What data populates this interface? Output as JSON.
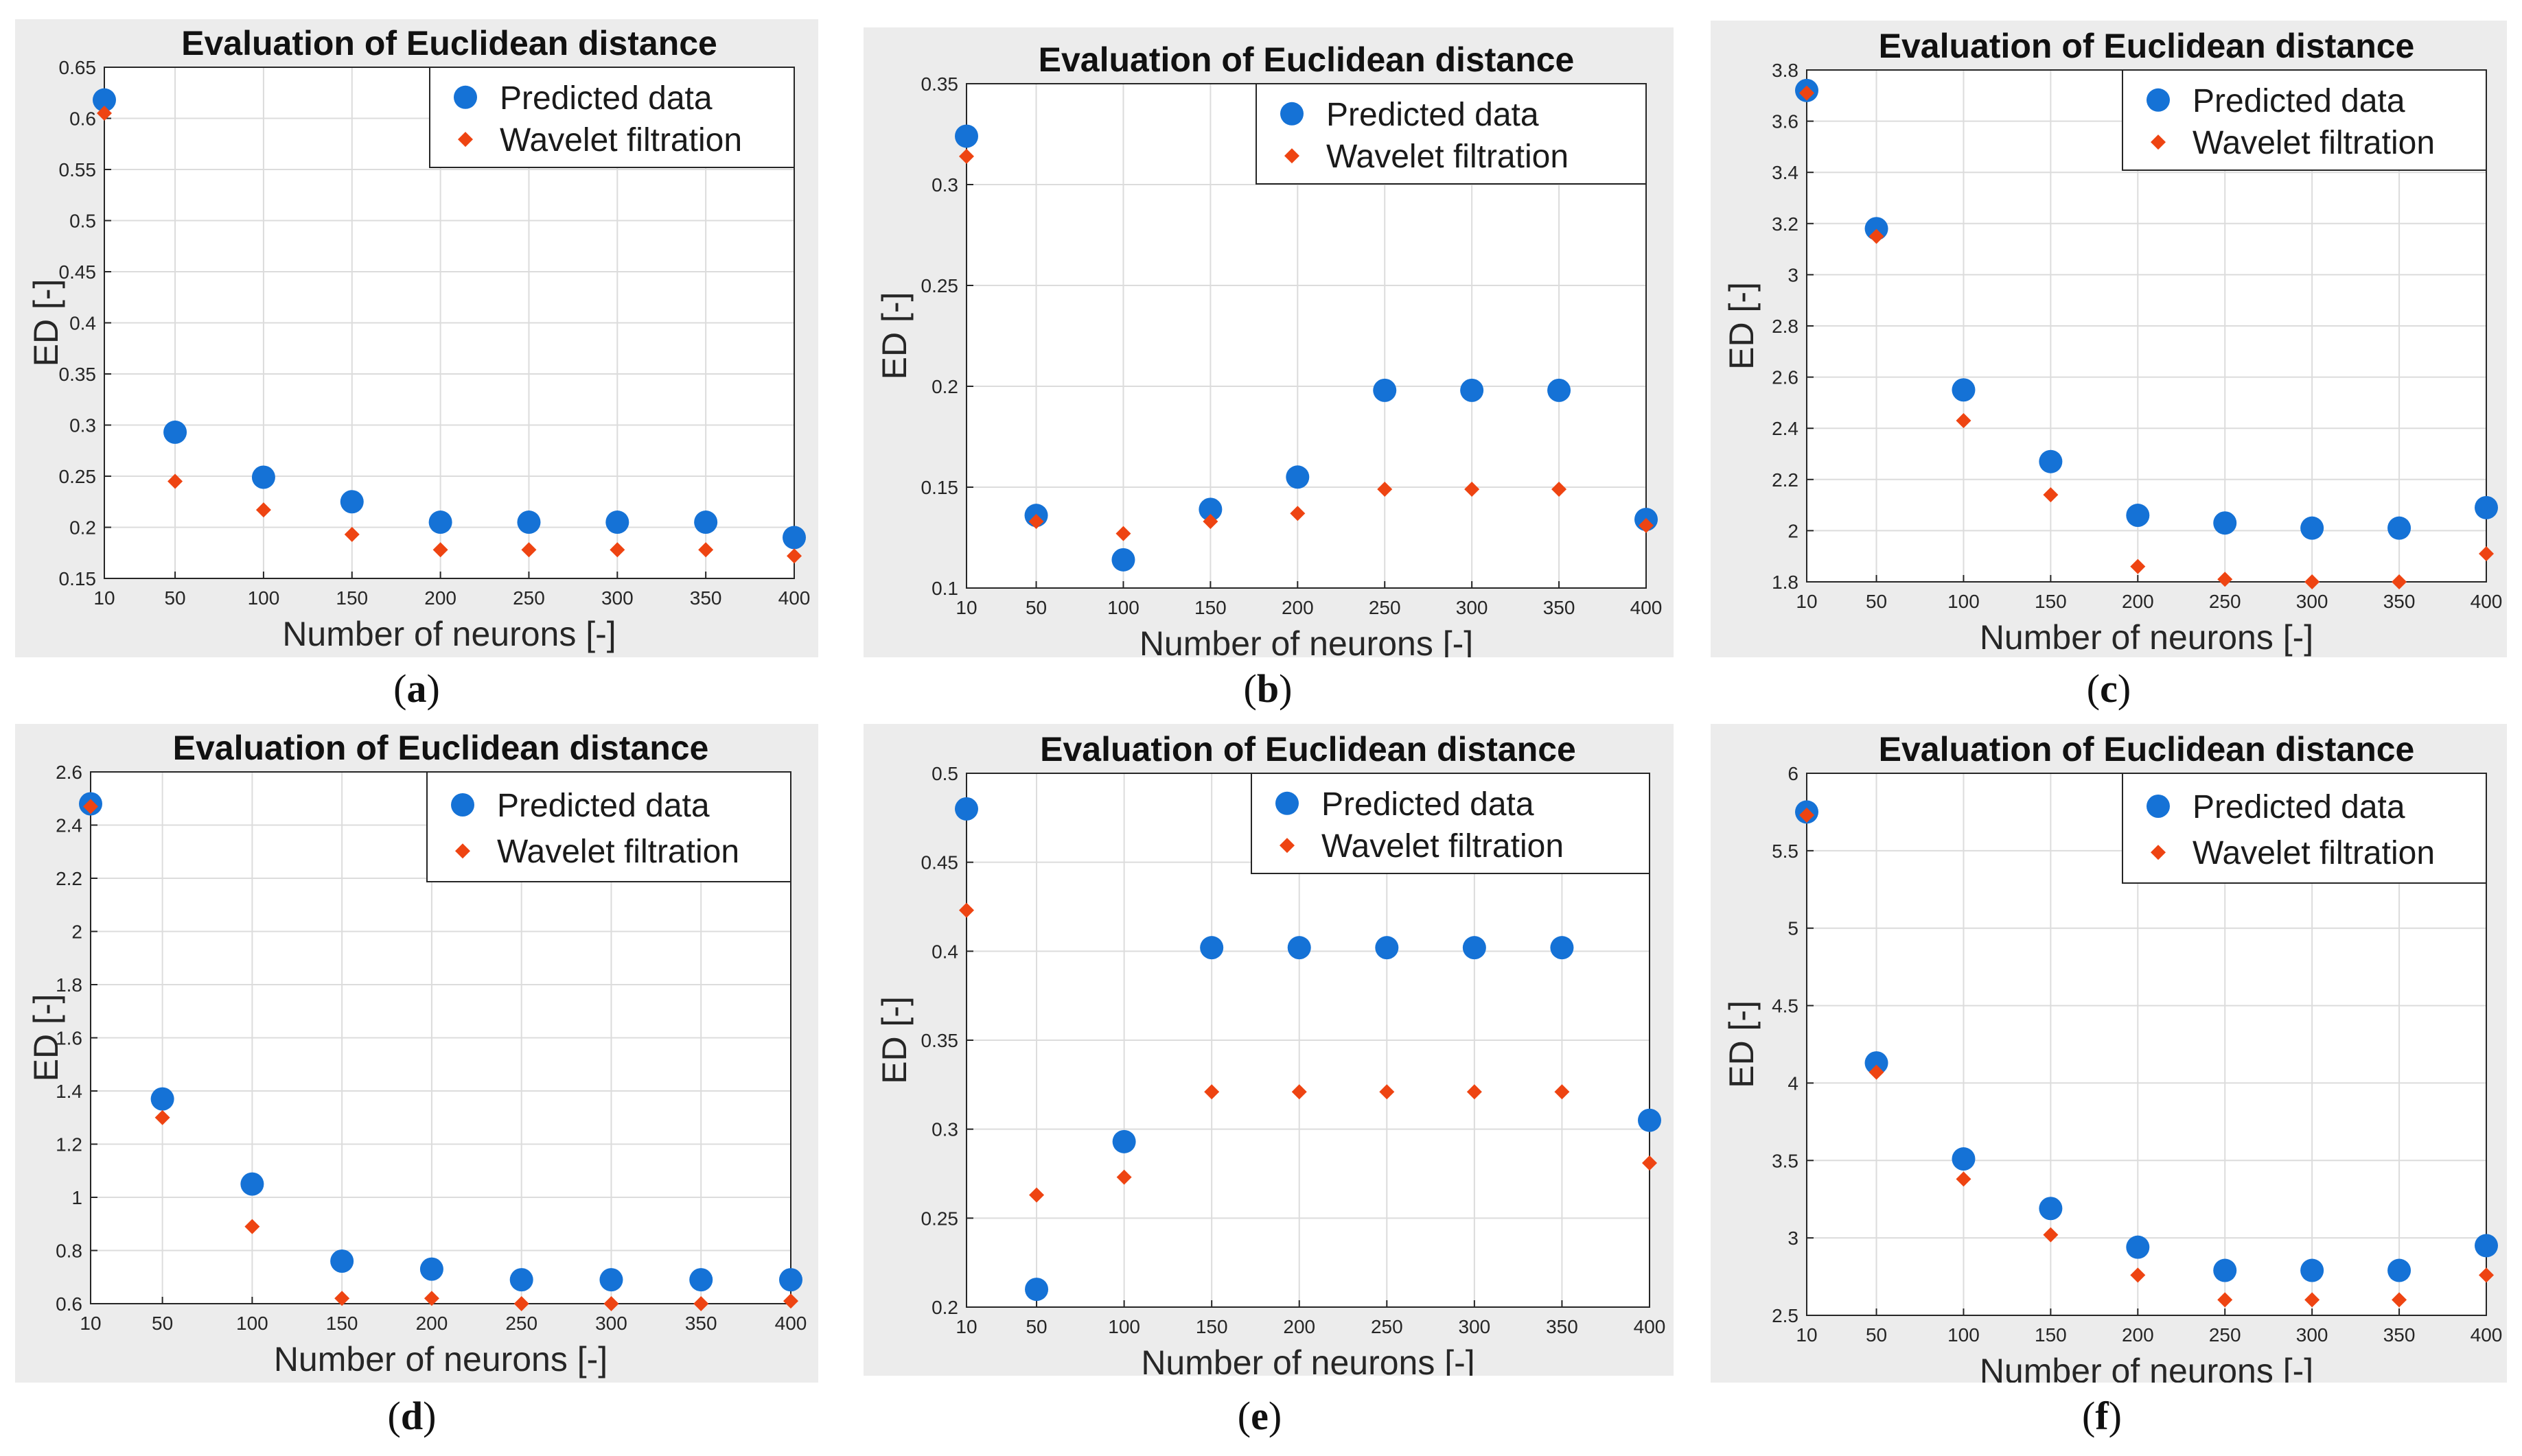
{
  "colors": {
    "predicted": "#1572d6",
    "wavelet": "#ee4412",
    "panel_bg": "#ececec",
    "grid": "#dcdcdc"
  },
  "figure": {
    "captions": [
      {
        "open": "(",
        "letter": "a",
        "close": ")"
      },
      {
        "open": "(",
        "letter": "b",
        "close": ")"
      },
      {
        "open": "(",
        "letter": "c",
        "close": ")"
      },
      {
        "open": "(",
        "letter": "d",
        "close": ")"
      },
      {
        "open": "(",
        "letter": "e",
        "close": ")"
      },
      {
        "open": "(",
        "letter": "f",
        "close": ")"
      }
    ]
  },
  "chart_data": [
    {
      "type": "scatter",
      "title": "Evaluation of Euclidean distance",
      "xlabel": "Number of neurons [-]",
      "ylabel": "ED [-]",
      "x": [
        10,
        50,
        100,
        150,
        200,
        250,
        300,
        350,
        400
      ],
      "xticks": [
        "10",
        "50",
        "100",
        "150",
        "200",
        "250",
        "300",
        "350",
        "400"
      ],
      "ylim": [
        0.15,
        0.65
      ],
      "yticks": [
        0.15,
        0.2,
        0.25,
        0.3,
        0.35,
        0.4,
        0.45,
        0.5,
        0.55,
        0.6,
        0.65
      ],
      "ytick_labels": [
        "0.15",
        "0.2",
        "0.25",
        "0.3",
        "0.35",
        "0.4",
        "0.45",
        "0.5",
        "0.55",
        "0.6",
        "0.65"
      ],
      "grid": true,
      "legend_position": "top-right",
      "series": [
        {
          "name": "Predicted data",
          "marker": "circle",
          "values": [
            0.618,
            0.293,
            0.249,
            0.225,
            0.205,
            0.205,
            0.205,
            0.205,
            0.19
          ]
        },
        {
          "name": "Wavelet filtration",
          "marker": "diamond",
          "values": [
            0.605,
            0.245,
            0.217,
            0.193,
            0.178,
            0.178,
            0.178,
            0.178,
            0.172
          ]
        }
      ]
    },
    {
      "type": "scatter",
      "title": "Evaluation of Euclidean distance",
      "xlabel": "Number of neurons [-]",
      "ylabel": "ED [-]",
      "x": [
        10,
        50,
        100,
        150,
        200,
        250,
        300,
        350,
        400
      ],
      "xticks": [
        "10",
        "50",
        "100",
        "150",
        "200",
        "250",
        "300",
        "350",
        "400"
      ],
      "ylim": [
        0.1,
        0.35
      ],
      "yticks": [
        0.1,
        0.15,
        0.2,
        0.25,
        0.3,
        0.35
      ],
      "ytick_labels": [
        "0.1",
        "0.15",
        "0.2",
        "0.25",
        "0.3",
        "0.35"
      ],
      "grid": true,
      "legend_position": "top-right",
      "series": [
        {
          "name": "Predicted data",
          "marker": "circle",
          "values": [
            0.324,
            0.136,
            0.114,
            0.139,
            0.155,
            0.198,
            0.198,
            0.198,
            0.134
          ]
        },
        {
          "name": "Wavelet filtration",
          "marker": "diamond",
          "values": [
            0.314,
            0.133,
            0.127,
            0.133,
            0.137,
            0.149,
            0.149,
            0.149,
            0.131
          ]
        }
      ]
    },
    {
      "type": "scatter",
      "title": "Evaluation of Euclidean distance",
      "xlabel": "Number of neurons [-]",
      "ylabel": "ED [-]",
      "x": [
        10,
        50,
        100,
        150,
        200,
        250,
        300,
        350,
        400
      ],
      "xticks": [
        "10",
        "50",
        "100",
        "150",
        "200",
        "250",
        "300",
        "350",
        "400"
      ],
      "ylim": [
        1.8,
        3.8
      ],
      "yticks": [
        1.8,
        2.0,
        2.2,
        2.4,
        2.6,
        2.8,
        3.0,
        3.2,
        3.4,
        3.6,
        3.8
      ],
      "ytick_labels": [
        "1.8",
        "2",
        "2.2",
        "2.4",
        "2.6",
        "2.8",
        "3",
        "3.2",
        "3.4",
        "3.6",
        "3.8"
      ],
      "grid": true,
      "legend_position": "top-right",
      "series": [
        {
          "name": "Predicted data",
          "marker": "circle",
          "values": [
            3.72,
            3.18,
            2.55,
            2.27,
            2.06,
            2.03,
            2.01,
            2.01,
            2.09
          ]
        },
        {
          "name": "Wavelet filtration",
          "marker": "diamond",
          "values": [
            3.71,
            3.15,
            2.43,
            2.14,
            1.86,
            1.81,
            1.8,
            1.8,
            1.91
          ]
        }
      ]
    },
    {
      "type": "scatter",
      "title": "Evaluation of Euclidean distance",
      "xlabel": "Number of neurons [-]",
      "ylabel": "ED [-]",
      "x": [
        10,
        50,
        100,
        150,
        200,
        250,
        300,
        350,
        400
      ],
      "xticks": [
        "10",
        "50",
        "100",
        "150",
        "200",
        "250",
        "300",
        "350",
        "400"
      ],
      "ylim": [
        0.6,
        2.6
      ],
      "yticks": [
        0.6,
        0.8,
        1.0,
        1.2,
        1.4,
        1.6,
        1.8,
        2.0,
        2.2,
        2.4,
        2.6
      ],
      "ytick_labels": [
        "0.6",
        "0.8",
        "1",
        "1.2",
        "1.4",
        "1.6",
        "1.8",
        "2",
        "2.2",
        "2.4",
        "2.6"
      ],
      "grid": true,
      "legend_position": "top-right",
      "series": [
        {
          "name": "Predicted data",
          "marker": "circle",
          "values": [
            2.48,
            1.37,
            1.05,
            0.76,
            0.73,
            0.69,
            0.69,
            0.69,
            0.69
          ]
        },
        {
          "name": "Wavelet filtration",
          "marker": "diamond",
          "values": [
            2.47,
            1.3,
            0.89,
            0.62,
            0.62,
            0.6,
            0.6,
            0.6,
            0.61
          ]
        }
      ]
    },
    {
      "type": "scatter",
      "title": "Evaluation of Euclidean distance",
      "xlabel": "Number of neurons [-]",
      "ylabel": "ED [-]",
      "x": [
        10,
        50,
        100,
        150,
        200,
        250,
        300,
        350,
        400
      ],
      "xticks": [
        "10",
        "50",
        "100",
        "150",
        "200",
        "250",
        "300",
        "350",
        "400"
      ],
      "ylim": [
        0.2,
        0.5
      ],
      "yticks": [
        0.2,
        0.25,
        0.3,
        0.35,
        0.4,
        0.45,
        0.5
      ],
      "ytick_labels": [
        "0.2",
        "0.25",
        "0.3",
        "0.35",
        "0.4",
        "0.45",
        "0.5"
      ],
      "grid": true,
      "legend_position": "top-right",
      "series": [
        {
          "name": "Predicted data",
          "marker": "circle",
          "values": [
            0.48,
            0.21,
            0.293,
            0.402,
            0.402,
            0.402,
            0.402,
            0.402,
            0.305
          ]
        },
        {
          "name": "Wavelet filtration",
          "marker": "diamond",
          "values": [
            0.423,
            0.263,
            0.273,
            0.321,
            0.321,
            0.321,
            0.321,
            0.321,
            0.281
          ]
        }
      ]
    },
    {
      "type": "scatter",
      "title": "Evaluation of Euclidean distance",
      "xlabel": "Number of neurons [-]",
      "ylabel": "ED [-]",
      "x": [
        10,
        50,
        100,
        150,
        200,
        250,
        300,
        350,
        400
      ],
      "xticks": [
        "10",
        "50",
        "100",
        "150",
        "200",
        "250",
        "300",
        "350",
        "400"
      ],
      "ylim": [
        2.5,
        6.0
      ],
      "yticks": [
        2.5,
        3.0,
        3.5,
        4.0,
        4.5,
        5.0,
        5.5,
        6.0
      ],
      "ytick_labels": [
        "2.5",
        "3",
        "3.5",
        "4",
        "4.5",
        "5",
        "5.5",
        "6"
      ],
      "grid": true,
      "legend_position": "top-right",
      "series": [
        {
          "name": "Predicted data",
          "marker": "circle",
          "values": [
            5.75,
            4.13,
            3.51,
            3.19,
            2.94,
            2.79,
            2.79,
            2.79,
            2.95
          ]
        },
        {
          "name": "Wavelet filtration",
          "marker": "diamond",
          "values": [
            5.73,
            4.07,
            3.38,
            3.02,
            2.76,
            2.6,
            2.6,
            2.6,
            2.76
          ]
        }
      ]
    }
  ]
}
